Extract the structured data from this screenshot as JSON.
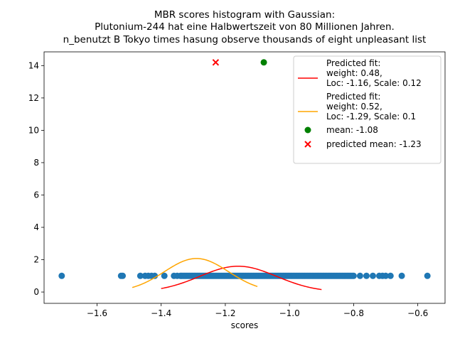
{
  "chart_data": {
    "type": "scatter",
    "title_lines": [
      "MBR scores histogram with Gaussian:",
      "Plutonium-244 hat eine Halbwertszeit von 80 Millionen Jahren.",
      "n_benutzt B Tokyo times hasung observe thousands of eight unpleasant list"
    ],
    "xlabel": "scores",
    "ylabel": "",
    "xlim": [
      -1.765,
      -0.515
    ],
    "ylim": [
      -0.7,
      14.85
    ],
    "xticks": [
      -1.6,
      -1.4,
      -1.2,
      -1.0,
      -0.8,
      -0.6
    ],
    "xtick_labels": [
      "−1.6",
      "−1.4",
      "−1.2",
      "−1.0",
      "−0.8",
      "−0.6"
    ],
    "yticks": [
      0,
      2,
      4,
      6,
      8,
      10,
      12,
      14
    ],
    "ytick_labels": [
      "0",
      "2",
      "4",
      "6",
      "8",
      "10",
      "12",
      "14"
    ],
    "scores": {
      "y_value": 1,
      "color": "#1f77b4",
      "isolated_points": [
        -1.71,
        -1.525,
        -1.52,
        -1.465,
        -1.45,
        -1.44,
        -1.43,
        -1.42,
        -1.39,
        -1.36,
        -1.35,
        -0.78,
        -0.76,
        -0.74,
        -0.72,
        -0.71,
        -0.7,
        -0.685,
        -0.65,
        -0.57
      ],
      "dense_range": [
        -1.34,
        -0.8
      ]
    },
    "series": [
      {
        "name": "Predicted fit:\nweight: 0.48,\nLoc: -1.16, Scale: 0.12",
        "legend_lines": [
          "Predicted fit:",
          "weight: 0.48,",
          "Loc: -1.16, Scale: 0.12"
        ],
        "type": "line",
        "color": "#ff0000",
        "weight": 0.48,
        "loc": -1.16,
        "scale": 0.12,
        "x_range": [
          -1.4,
          -0.9
        ]
      },
      {
        "name": "Predicted fit:\nweight: 0.52,\nLoc: -1.29, Scale: 0.1",
        "legend_lines": [
          "Predicted fit:",
          "weight: 0.52,",
          "Loc: -1.29, Scale: 0.1"
        ],
        "type": "line",
        "color": "#ffa500",
        "weight": 0.52,
        "loc": -1.29,
        "scale": 0.1,
        "x_range": [
          -1.49,
          -1.1
        ]
      }
    ],
    "markers": [
      {
        "name": "mean: -1.08",
        "type": "scatter",
        "marker": "circle",
        "color": "#008000",
        "x": -1.08,
        "y": 14.2
      },
      {
        "name": "predicted mean: -1.23",
        "type": "scatter",
        "marker": "x",
        "color": "#ff0000",
        "x": -1.23,
        "y": 14.2
      }
    ],
    "legend_position": "top-right",
    "grid": false
  }
}
